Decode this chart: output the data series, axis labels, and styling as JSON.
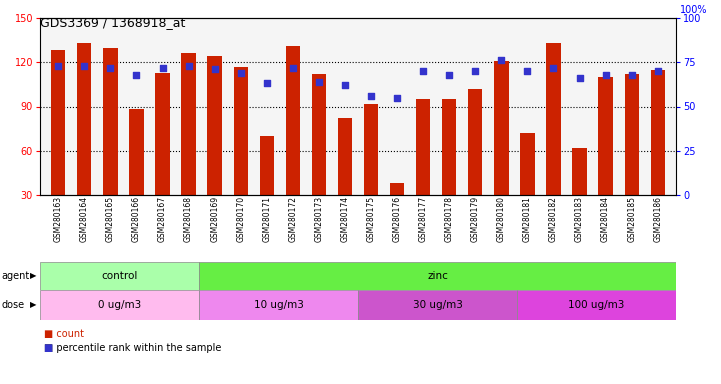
{
  "title": "GDS3369 / 1368918_at",
  "samples": [
    "GSM280163",
    "GSM280164",
    "GSM280165",
    "GSM280166",
    "GSM280167",
    "GSM280168",
    "GSM280169",
    "GSM280170",
    "GSM280171",
    "GSM280172",
    "GSM280173",
    "GSM280174",
    "GSM280175",
    "GSM280176",
    "GSM280177",
    "GSM280178",
    "GSM280179",
    "GSM280180",
    "GSM280181",
    "GSM280182",
    "GSM280183",
    "GSM280184",
    "GSM280185",
    "GSM280186"
  ],
  "counts": [
    128,
    133,
    130,
    88,
    113,
    126,
    124,
    117,
    70,
    131,
    112,
    82,
    92,
    38,
    95,
    95,
    102,
    121,
    72,
    133,
    62,
    110,
    112,
    115
  ],
  "percentile": [
    73,
    73,
    72,
    68,
    72,
    73,
    71,
    69,
    63,
    72,
    64,
    62,
    56,
    55,
    70,
    68,
    70,
    76,
    70,
    72,
    66,
    68,
    68,
    70
  ],
  "ylim_left": [
    30,
    150
  ],
  "ylim_right": [
    0,
    100
  ],
  "yticks_left": [
    30,
    60,
    90,
    120,
    150
  ],
  "yticks_right": [
    0,
    25,
    50,
    75,
    100
  ],
  "bar_color": "#cc2200",
  "dot_color": "#3333cc",
  "agent_groups": [
    {
      "label": "control",
      "start": 0,
      "end": 6,
      "color": "#aaffaa"
    },
    {
      "label": "zinc",
      "start": 6,
      "end": 24,
      "color": "#66ee44"
    }
  ],
  "dose_groups": [
    {
      "label": "0 ug/m3",
      "start": 0,
      "end": 6,
      "color": "#ffbbee"
    },
    {
      "label": "10 ug/m3",
      "start": 6,
      "end": 12,
      "color": "#ee88ee"
    },
    {
      "label": "30 ug/m3",
      "start": 12,
      "end": 18,
      "color": "#cc55cc"
    },
    {
      "label": "100 ug/m3",
      "start": 18,
      "end": 24,
      "color": "#dd44dd"
    }
  ],
  "legend_count_color": "#cc2200",
  "legend_dot_color": "#3333cc"
}
